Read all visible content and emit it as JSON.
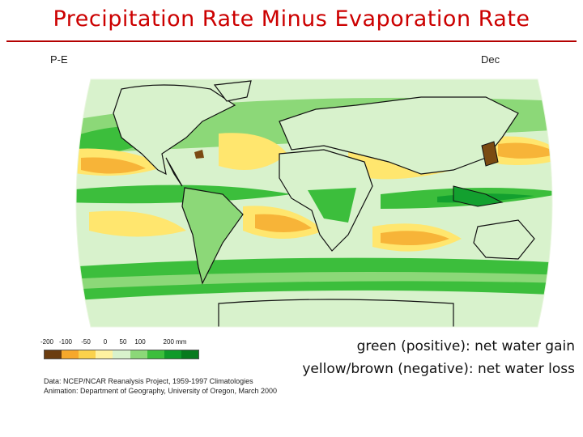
{
  "slide": {
    "title": "Precipitation Rate Minus Evaporation Rate"
  },
  "map": {
    "variable_label": "P-E",
    "month_label": "Dec",
    "projection": "robinson-like world map",
    "colors": {
      "ocean_base": "#d8f2cc",
      "strong_wet": "#13a02f",
      "wet": "#3cbe3c",
      "moderate_wet": "#8cd878",
      "dry": "#ffe66e",
      "very_dry": "#f7b438",
      "extreme_dry": "#7a4a12",
      "coastline": "#111111"
    }
  },
  "legend": {
    "tick_labels": [
      "-200",
      "-100",
      "-50",
      "0",
      "50",
      "100",
      "200 mm"
    ],
    "colors": [
      "#6b3d10",
      "#f6a82c",
      "#fbd24c",
      "#fff2a0",
      "#d8f2cc",
      "#8cd878",
      "#3cbe3c",
      "#0f9a2a",
      "#087a1e"
    ]
  },
  "captions": {
    "positive": "green (positive): net water gain",
    "negative": "yellow/brown (negative): net water loss"
  },
  "credits": {
    "data_line": "Data: NCEP/NCAR Reanalysis Project, 1959-1997 Climatologies",
    "animation_line": "Animation: Department of Geography, University of Oregon, March 2000"
  }
}
